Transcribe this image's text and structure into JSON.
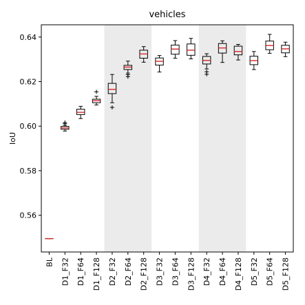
{
  "chart_data": {
    "type": "box",
    "title": "vehicles",
    "xlabel": "",
    "ylabel": "IoU",
    "ylim": [
      0.5435,
      0.6455
    ],
    "yticks": [
      0.56,
      0.58,
      0.6,
      0.62,
      0.64
    ],
    "ytick_labels": [
      "0.56",
      "0.58",
      "0.60",
      "0.62",
      "0.64"
    ],
    "grid": false,
    "legend": "none",
    "shaded_bands": [
      {
        "from": "D2_F32",
        "to": "D2_F128"
      },
      {
        "from": "D4_F32",
        "to": "D4_F128"
      }
    ],
    "categories": [
      "BL",
      "D1_F32",
      "D1_F64",
      "D1_F128",
      "D2_F32",
      "D2_F64",
      "D2_F128",
      "D3_F32",
      "D3_F64",
      "D3_F128",
      "D4_F32",
      "D4_F64",
      "D4_F128",
      "D5_F32",
      "D5_F64",
      "D5_F128"
    ],
    "boxes": [
      {
        "category": "BL",
        "whislo": 0.5495,
        "q1": 0.5495,
        "med": 0.5495,
        "q3": 0.5495,
        "whishi": 0.5495,
        "fliers": []
      },
      {
        "category": "D1_F32",
        "whislo": 0.5978,
        "q1": 0.5986,
        "med": 0.5992,
        "q3": 0.5999,
        "whishi": 0.6004,
        "fliers": [
          0.6016,
          0.6011
        ]
      },
      {
        "category": "D1_F64",
        "whislo": 0.6034,
        "q1": 0.6052,
        "med": 0.6062,
        "q3": 0.6076,
        "whishi": 0.6089,
        "fliers": []
      },
      {
        "category": "D1_F128",
        "whislo": 0.6095,
        "q1": 0.6105,
        "med": 0.6114,
        "q3": 0.6121,
        "whishi": 0.6134,
        "fliers": [
          0.6154
        ]
      },
      {
        "category": "D2_F32",
        "whislo": 0.6105,
        "q1": 0.6146,
        "med": 0.6165,
        "q3": 0.6192,
        "whishi": 0.6232,
        "fliers": [
          0.6084
        ]
      },
      {
        "category": "D2_F64",
        "whislo": 0.6238,
        "q1": 0.6254,
        "med": 0.6265,
        "q3": 0.6273,
        "whishi": 0.6292,
        "fliers": [
          0.6231,
          0.6222
        ]
      },
      {
        "category": "D2_F128",
        "whislo": 0.6287,
        "q1": 0.6305,
        "med": 0.6324,
        "q3": 0.6341,
        "whishi": 0.6357,
        "fliers": []
      },
      {
        "category": "D3_F32",
        "whislo": 0.6243,
        "q1": 0.6274,
        "med": 0.6291,
        "q3": 0.6306,
        "whishi": 0.6317,
        "fliers": []
      },
      {
        "category": "D3_F64",
        "whislo": 0.6305,
        "q1": 0.6323,
        "med": 0.6346,
        "q3": 0.6364,
        "whishi": 0.6384,
        "fliers": []
      },
      {
        "category": "D3_F128",
        "whislo": 0.6302,
        "q1": 0.6318,
        "med": 0.6341,
        "q3": 0.6369,
        "whishi": 0.6394,
        "fliers": []
      },
      {
        "category": "D4_F32",
        "whislo": 0.6257,
        "q1": 0.6279,
        "med": 0.6295,
        "q3": 0.6313,
        "whishi": 0.6325,
        "fliers": [
          0.6244,
          0.6233
        ]
      },
      {
        "category": "D4_F64",
        "whislo": 0.6286,
        "q1": 0.6328,
        "med": 0.6351,
        "q3": 0.6371,
        "whishi": 0.6383,
        "fliers": []
      },
      {
        "category": "D4_F128",
        "whislo": 0.6297,
        "q1": 0.632,
        "med": 0.6335,
        "q3": 0.6359,
        "whishi": 0.6367,
        "fliers": []
      },
      {
        "category": "D5_F32",
        "whislo": 0.6254,
        "q1": 0.6276,
        "med": 0.6294,
        "q3": 0.6314,
        "whishi": 0.6335,
        "fliers": []
      },
      {
        "category": "D5_F64",
        "whislo": 0.6327,
        "q1": 0.6343,
        "med": 0.6362,
        "q3": 0.6382,
        "whishi": 0.6412,
        "fliers": []
      },
      {
        "category": "D5_F128",
        "whislo": 0.6312,
        "q1": 0.6329,
        "med": 0.6347,
        "q3": 0.6363,
        "whishi": 0.6377,
        "fliers": []
      }
    ],
    "colors": {
      "box_edge": "#000000",
      "median": "#d62728",
      "band": "#ebebeb",
      "axes": "#000000"
    }
  }
}
